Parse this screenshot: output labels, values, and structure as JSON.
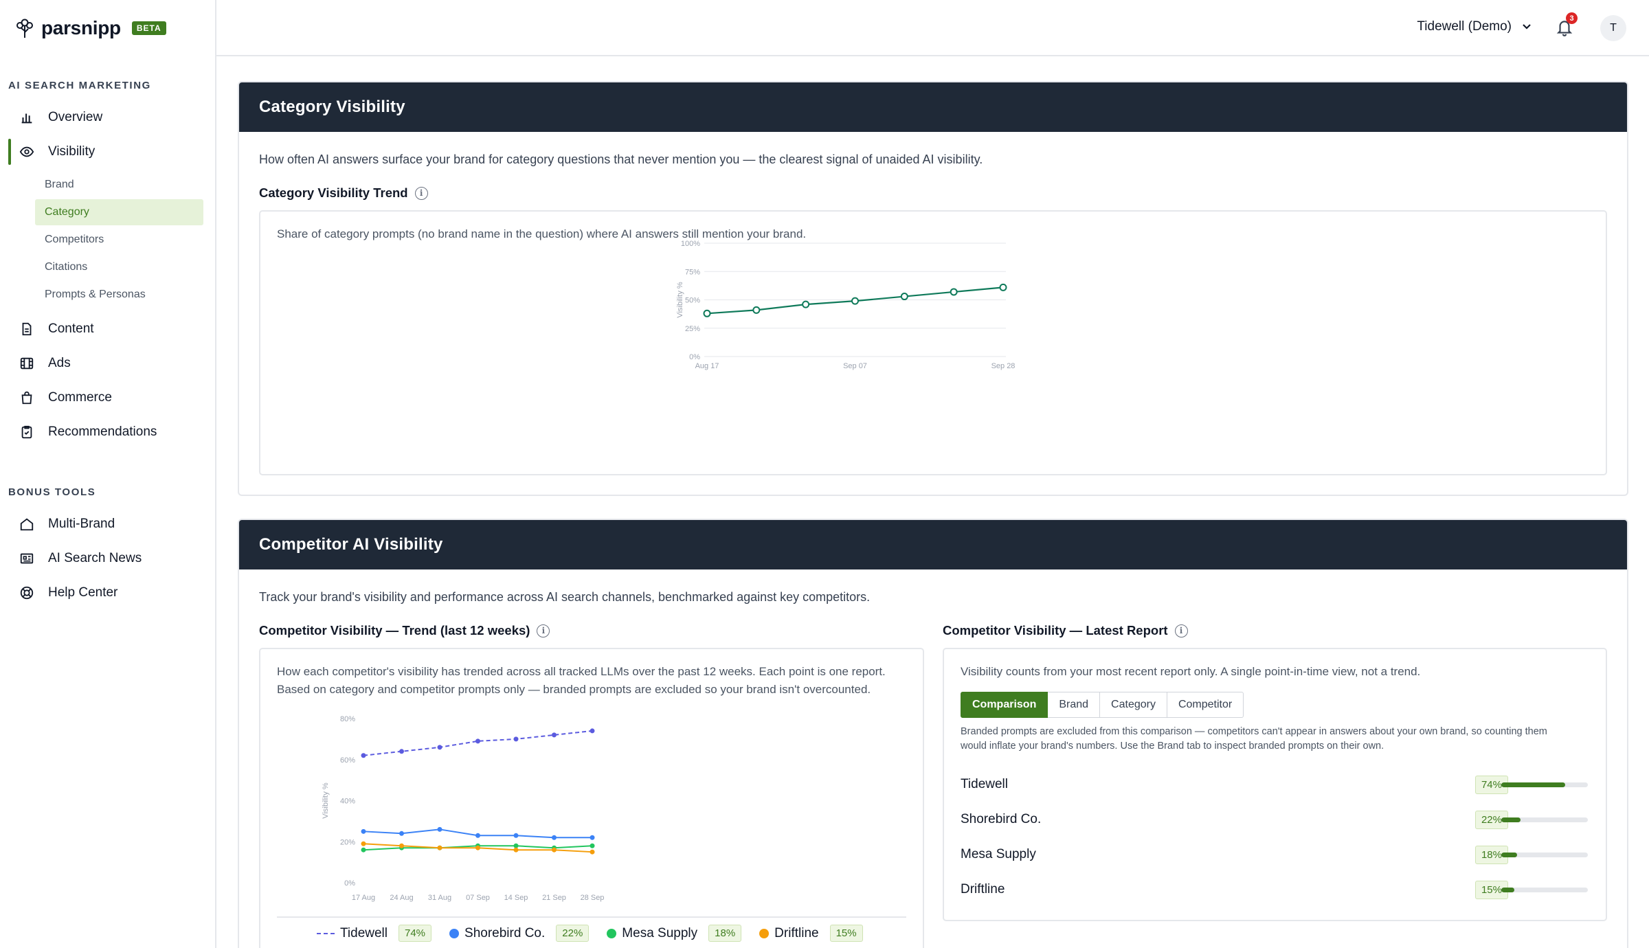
{
  "app": {
    "name": "parsnipp",
    "badge": "BETA"
  },
  "sidebar": {
    "section1": "AI SEARCH MARKETING",
    "overview": "Overview",
    "visibility": "Visibility",
    "sub": [
      "Brand",
      "Category",
      "Competitors",
      "Citations",
      "Prompts & Personas"
    ],
    "content": "Content",
    "ads": "Ads",
    "commerce": "Commerce",
    "recommendations": "Recommendations",
    "section2": "BONUS TOOLS",
    "multibrand": "Multi-Brand",
    "news": "AI Search News",
    "help": "Help Center"
  },
  "topbar": {
    "org": "Tidewell (Demo)",
    "notifications": "3",
    "avatar": "T"
  },
  "category": {
    "title": "Category Visibility",
    "description": "How often AI answers surface your brand for category questions that never mention you — the clearest signal of unaided AI visibility.",
    "trend_title": "Category Visibility Trend",
    "panel_note": "Share of category prompts (no brand name in the question) where AI answers still mention your brand.",
    "y_ticks": [
      "100%",
      "75%",
      "50%",
      "25%",
      "0%"
    ],
    "y_label": "Visibility %",
    "x_ticks": [
      "Aug 17",
      "Sep 07",
      "Sep 28"
    ]
  },
  "competitor": {
    "title": "Competitor AI Visibility",
    "description": "Track your brand's visibility and performance across AI search channels, benchmarked against key competitors.",
    "trend_title": "Competitor Visibility — Trend (last 12 weeks)",
    "trend_note_1": "How each competitor's visibility has trended across all tracked LLMs over the past 12 weeks. Each point is one report.",
    "trend_note_2": "Based on category and competitor prompts only — branded prompts are excluded so your brand isn't overcounted.",
    "y_ticks": [
      "80%",
      "60%",
      "40%",
      "20%",
      "0%"
    ],
    "y_label": "Visibility %",
    "x_ticks": [
      "17 Aug",
      "24 Aug",
      "31 Aug",
      "07 Sep",
      "14 Sep",
      "21 Sep",
      "28 Sep"
    ],
    "latest_title": "Competitor Visibility — Latest Report",
    "latest_note": "Visibility counts from your most recent report only. A single point-in-time view, not a trend.",
    "tabs": [
      "Comparison",
      "Brand",
      "Category",
      "Competitor"
    ],
    "excluded_note_1": "Branded prompts are excluded from this comparison — competitors can't appear in answers about your own brand, so counting them",
    "excluded_note_2": "would inflate your brand's numbers. Use the Brand tab to inspect branded prompts on their own.",
    "bars": [
      {
        "name": "Tidewell",
        "pct": "74%",
        "value": 0.74
      },
      {
        "name": "Shorebird Co.",
        "pct": "22%",
        "value": 0.22
      },
      {
        "name": "Mesa Supply",
        "pct": "18%",
        "value": 0.18
      },
      {
        "name": "Driftline",
        "pct": "15%",
        "value": 0.15
      }
    ],
    "legend": [
      {
        "name": "Tidewell",
        "pct": "74%"
      },
      {
        "name": "Shorebird Co.",
        "pct": "22%"
      },
      {
        "name": "Mesa Supply",
        "pct": "18%"
      },
      {
        "name": "Driftline",
        "pct": "15%"
      }
    ]
  },
  "colors": {
    "accent": "#3f7d20",
    "header": "#1f2937",
    "tidewell": "#5b5bdf",
    "shorebird": "#3b82f6",
    "mesa": "#22c55e",
    "driftline": "#f59e0b",
    "category_line": "#0f7a5a"
  },
  "chart_data": [
    {
      "type": "line",
      "x": [
        "Aug 17",
        "Aug 24",
        "Aug 31",
        "Sep 07",
        "Sep 14",
        "Sep 21",
        "Sep 28"
      ],
      "series": [
        {
          "values": [
            38,
            41,
            46,
            49,
            53,
            57,
            61
          ]
        }
      ],
      "ylabel": "Visibility %",
      "ylim": [
        0,
        100
      ],
      "grid": true
    },
    {
      "type": "line",
      "x": [
        "17 Aug",
        "24 Aug",
        "31 Aug",
        "07 Sep",
        "14 Sep",
        "21 Sep",
        "28 Sep"
      ],
      "series": [
        {
          "name": "Tidewell",
          "values": [
            62,
            64,
            66,
            69,
            70,
            72,
            74
          ]
        },
        {
          "name": "Shorebird Co.",
          "values": [
            25,
            24,
            26,
            23,
            23,
            22,
            22
          ]
        },
        {
          "name": "Mesa Supply",
          "values": [
            16,
            17,
            17,
            18,
            18,
            17,
            18
          ]
        },
        {
          "name": "Driftline",
          "values": [
            19,
            18,
            17,
            17,
            16,
            16,
            15
          ]
        }
      ],
      "ylabel": "Visibility %",
      "ylim": [
        0,
        80
      ],
      "grid": false,
      "legend": "bottom"
    }
  ]
}
